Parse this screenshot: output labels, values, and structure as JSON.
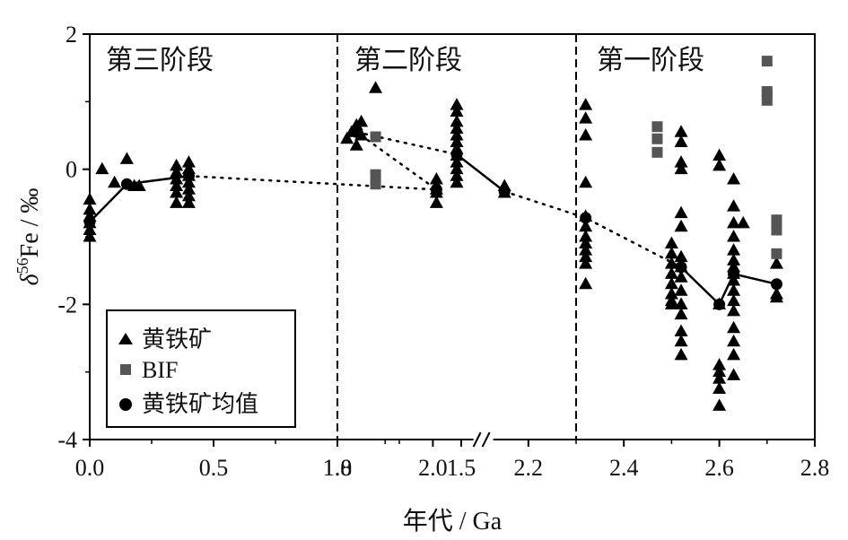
{
  "chart_data": {
    "type": "scatter",
    "xlabel": "年代 / Ga",
    "ylabel": {
      "delta": "δ",
      "sup": "56",
      "rest": "Fe / ‰"
    },
    "ylim": [
      -4,
      2
    ],
    "x_axis_break": {
      "between": [
        1.6,
        1.8
      ],
      "note": "0.0–1.6 Ga segment and 1.8–2.8 Ga segment"
    },
    "x_ticks": [
      "0.0",
      "0.5",
      "1.0",
      "1.5",
      "1.8",
      "2.0",
      "2.2",
      "2.4",
      "2.6",
      "2.8"
    ],
    "y_ticks": [
      "2",
      "0",
      "-2",
      "-4"
    ],
    "stage_boundaries": [
      1.8,
      2.3
    ],
    "stage_labels": [
      "第三阶段",
      "第二阶段",
      "第一阶段"
    ],
    "legend": {
      "position": "bottom-left",
      "entries": [
        "黄铁矿",
        "BIF",
        "黄铁矿均值"
      ]
    },
    "series": [
      {
        "name": "黄铁矿",
        "marker": "triangle",
        "color": "#000000",
        "points": [
          [
            0.0,
            -0.45
          ],
          [
            0.0,
            -0.6
          ],
          [
            0.0,
            -0.7
          ],
          [
            0.0,
            -0.8
          ],
          [
            0.0,
            -0.9
          ],
          [
            0.0,
            -1.0
          ],
          [
            0.05,
            0.0
          ],
          [
            0.1,
            -0.2
          ],
          [
            0.15,
            0.15
          ],
          [
            0.18,
            -0.25
          ],
          [
            0.2,
            -0.25
          ],
          [
            0.35,
            0.05
          ],
          [
            0.35,
            -0.05
          ],
          [
            0.35,
            -0.15
          ],
          [
            0.35,
            -0.25
          ],
          [
            0.35,
            -0.35
          ],
          [
            0.35,
            -0.5
          ],
          [
            0.4,
            0.1
          ],
          [
            0.4,
            0.0
          ],
          [
            0.4,
            -0.1
          ],
          [
            0.4,
            -0.2
          ],
          [
            0.4,
            -0.3
          ],
          [
            0.4,
            -0.4
          ],
          [
            0.4,
            -0.5
          ],
          [
            1.4,
            -0.15
          ],
          [
            1.4,
            -0.3
          ],
          [
            1.4,
            -0.35
          ],
          [
            1.4,
            -0.5
          ],
          [
            1.82,
            0.45
          ],
          [
            1.83,
            0.55
          ],
          [
            1.84,
            0.35
          ],
          [
            1.84,
            0.65
          ],
          [
            1.85,
            0.5
          ],
          [
            1.85,
            0.7
          ],
          [
            1.88,
            1.2
          ],
          [
            2.05,
            0.95
          ],
          [
            2.05,
            0.85
          ],
          [
            2.05,
            0.7
          ],
          [
            2.05,
            0.6
          ],
          [
            2.05,
            0.5
          ],
          [
            2.05,
            0.4
          ],
          [
            2.05,
            0.3
          ],
          [
            2.05,
            0.2
          ],
          [
            2.05,
            0.1
          ],
          [
            2.05,
            0.0
          ],
          [
            2.05,
            -0.1
          ],
          [
            2.05,
            -0.2
          ],
          [
            2.15,
            -0.25
          ],
          [
            2.15,
            -0.35
          ],
          [
            2.32,
            0.95
          ],
          [
            2.32,
            0.75
          ],
          [
            2.32,
            0.5
          ],
          [
            2.32,
            -0.2
          ],
          [
            2.32,
            -0.7
          ],
          [
            2.32,
            -0.85
          ],
          [
            2.32,
            -1.0
          ],
          [
            2.32,
            -1.1
          ],
          [
            2.32,
            -1.2
          ],
          [
            2.32,
            -1.3
          ],
          [
            2.32,
            -1.4
          ],
          [
            2.32,
            -1.7
          ],
          [
            2.5,
            -1.1
          ],
          [
            2.5,
            -1.25
          ],
          [
            2.5,
            -1.4
          ],
          [
            2.5,
            -1.55
          ],
          [
            2.5,
            -1.7
          ],
          [
            2.5,
            -1.85
          ],
          [
            2.5,
            -1.95
          ],
          [
            2.5,
            -2.0
          ],
          [
            2.52,
            0.55
          ],
          [
            2.52,
            0.4
          ],
          [
            2.52,
            0.1
          ],
          [
            2.52,
            0.0
          ],
          [
            2.52,
            -0.65
          ],
          [
            2.52,
            -0.85
          ],
          [
            2.52,
            -1.3
          ],
          [
            2.52,
            -1.45
          ],
          [
            2.52,
            -1.6
          ],
          [
            2.52,
            -1.8
          ],
          [
            2.52,
            -2.0
          ],
          [
            2.52,
            -2.15
          ],
          [
            2.52,
            -2.4
          ],
          [
            2.52,
            -2.55
          ],
          [
            2.52,
            -2.75
          ],
          [
            2.6,
            0.2
          ],
          [
            2.6,
            0.05
          ],
          [
            2.6,
            -2.0
          ],
          [
            2.6,
            -2.9
          ],
          [
            2.6,
            -3.0
          ],
          [
            2.6,
            -3.1
          ],
          [
            2.6,
            -3.25
          ],
          [
            2.6,
            -3.5
          ],
          [
            2.63,
            -0.15
          ],
          [
            2.63,
            -0.55
          ],
          [
            2.63,
            -0.8
          ],
          [
            2.63,
            -1.0
          ],
          [
            2.63,
            -1.2
          ],
          [
            2.63,
            -1.35
          ],
          [
            2.63,
            -1.45
          ],
          [
            2.63,
            -1.55
          ],
          [
            2.63,
            -1.65
          ],
          [
            2.63,
            -1.8
          ],
          [
            2.63,
            -1.95
          ],
          [
            2.63,
            -2.1
          ],
          [
            2.63,
            -2.35
          ],
          [
            2.63,
            -2.55
          ],
          [
            2.63,
            -2.75
          ],
          [
            2.63,
            -3.05
          ],
          [
            2.65,
            -0.8
          ],
          [
            2.72,
            -1.4
          ],
          [
            2.72,
            -1.85
          ],
          [
            2.72,
            -1.9
          ]
        ]
      },
      {
        "name": "BIF",
        "marker": "square",
        "color": "#555555",
        "points": [
          [
            1.88,
            0.48
          ],
          [
            1.88,
            -0.08
          ],
          [
            1.88,
            -0.22
          ],
          [
            2.47,
            0.63
          ],
          [
            2.47,
            0.45
          ],
          [
            2.47,
            0.25
          ],
          [
            2.7,
            1.6
          ],
          [
            2.7,
            1.15
          ],
          [
            2.7,
            1.1
          ],
          [
            2.7,
            1.02
          ],
          [
            2.72,
            -0.75
          ],
          [
            2.72,
            -0.9
          ],
          [
            2.72,
            -1.25
          ]
        ]
      },
      {
        "name": "黄铁矿均值",
        "marker": "circle",
        "color": "#000000",
        "points": [
          [
            0.0,
            -0.78
          ],
          [
            0.15,
            -0.22
          ],
          [
            0.4,
            -0.1
          ],
          [
            1.4,
            -0.3
          ],
          [
            1.84,
            0.55
          ],
          [
            2.05,
            0.22
          ],
          [
            2.15,
            -0.33
          ],
          [
            2.32,
            -0.72
          ],
          [
            2.52,
            -1.45
          ],
          [
            2.6,
            -2.0
          ],
          [
            2.63,
            -1.55
          ],
          [
            2.72,
            -1.7
          ]
        ]
      }
    ],
    "mean_trend": {
      "solid_segments": [
        [
          [
            0.0,
            -0.78
          ],
          [
            0.15,
            -0.22
          ],
          [
            0.4,
            -0.1
          ]
        ],
        [
          [
            2.05,
            0.22
          ],
          [
            2.15,
            -0.33
          ]
        ],
        [
          [
            2.52,
            -1.45
          ],
          [
            2.6,
            -2.0
          ],
          [
            2.63,
            -1.55
          ],
          [
            2.72,
            -1.7
          ]
        ]
      ],
      "dotted_segments": [
        [
          [
            0.4,
            -0.1
          ],
          [
            1.4,
            -0.3
          ],
          [
            1.84,
            0.55
          ],
          [
            2.05,
            0.22
          ]
        ],
        [
          [
            2.15,
            -0.33
          ],
          [
            2.32,
            -0.72
          ],
          [
            2.52,
            -1.45
          ]
        ]
      ]
    }
  }
}
